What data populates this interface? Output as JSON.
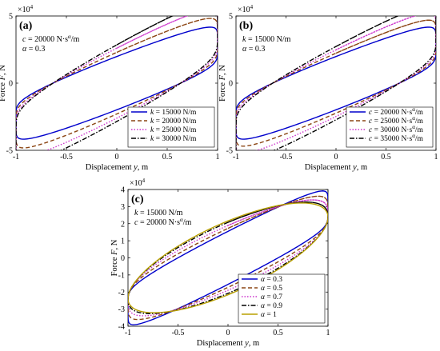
{
  "figure": {
    "x_unit_label_prefix": "Displacement ",
    "x_unit_label_var": "y",
    "x_unit_label_suffix": ", m",
    "y_unit_label_prefix": "Force ",
    "y_unit_label_var": "F",
    "y_unit_label_suffix": ", N",
    "exponent_label": "×10",
    "exponent_power": "4"
  },
  "chart_data": [
    {
      "type": "line",
      "panel_label": "(a)",
      "title": "",
      "xlabel": "Displacement y, m",
      "ylabel": "Force F, N",
      "xlim": [
        -1,
        1
      ],
      "ylim": [
        -5,
        5
      ],
      "y_scale_note": "×10^4",
      "xticks": [
        -1,
        -0.5,
        0,
        0.5,
        1
      ],
      "xtick_labels": [
        "-1",
        "-0.5",
        "0",
        "0.5",
        "1"
      ],
      "yticks": [
        -5,
        0,
        5
      ],
      "ytick_labels": [
        "-5",
        "0",
        "5"
      ],
      "annotation": [
        "c = 20000 N·s^α/m",
        "α = 0.3"
      ],
      "legend_position": "lower-right",
      "model": {
        "c": 20000,
        "alpha": 0.3
      },
      "series": [
        {
          "name": "k = 15000 N/m",
          "k": 15000,
          "color": "#0000cc",
          "dash": "solid",
          "peak": 3.2
        },
        {
          "name": "k = 20000 N/m",
          "k": 20000,
          "color": "#8b4513",
          "dash": "dashed",
          "peak": 3.7
        },
        {
          "name": "k = 25000 N/m",
          "k": 25000,
          "color": "#cc33cc",
          "dash": "dotted",
          "peak": 4.2
        },
        {
          "name": "k = 30000 N/m",
          "k": 30000,
          "color": "#000000",
          "dash": "dashdot",
          "peak": 4.6
        }
      ]
    },
    {
      "type": "line",
      "panel_label": "(b)",
      "title": "",
      "xlabel": "Displacement y, m",
      "ylabel": "Force F, N",
      "xlim": [
        -1,
        1
      ],
      "ylim": [
        -5,
        5
      ],
      "y_scale_note": "×10^4",
      "xticks": [
        -1,
        -0.5,
        0,
        0.5,
        1
      ],
      "xtick_labels": [
        "-1",
        "-0.5",
        "0",
        "0.5",
        "1"
      ],
      "yticks": [
        -5,
        0,
        5
      ],
      "ytick_labels": [
        "-5",
        "0",
        "5"
      ],
      "annotation": [
        "k = 15000 N/m",
        "α = 0.3"
      ],
      "legend_position": "lower-right",
      "model": {
        "k": 15000,
        "alpha": 0.3
      },
      "series": [
        {
          "name": "c = 20000 N·s^α/m",
          "c": 20000,
          "color": "#0000cc",
          "dash": "solid",
          "peak": 3.2
        },
        {
          "name": "c = 25000 N·s^α/m",
          "c": 25000,
          "color": "#8b4513",
          "dash": "dashed",
          "peak": 3.6
        },
        {
          "name": "c = 30000 N·s^α/m",
          "c": 30000,
          "color": "#cc33cc",
          "dash": "dotted",
          "peak": 4.0
        },
        {
          "name": "c = 35000 N·s^α/m",
          "c": 35000,
          "color": "#000000",
          "dash": "dashdot",
          "peak": 4.4
        }
      ]
    },
    {
      "type": "line",
      "panel_label": "(c)",
      "title": "",
      "xlabel": "Displacement y, m",
      "ylabel": "Force F, N",
      "xlim": [
        -1,
        1
      ],
      "ylim": [
        -4,
        4
      ],
      "y_scale_note": "×10^4",
      "xticks": [
        -1,
        -0.5,
        0,
        0.5,
        1
      ],
      "xtick_labels": [
        "-1",
        "-0.5",
        "0",
        "0.5",
        "1"
      ],
      "yticks": [
        -4,
        -3,
        -2,
        -1,
        0,
        1,
        2,
        3,
        4
      ],
      "ytick_labels": [
        "-4",
        "-3",
        "-2",
        "-1",
        "0",
        "1",
        "2",
        "3",
        "4"
      ],
      "annotation": [
        "k = 15000 N/m",
        "c = 20000 N·s^α/m"
      ],
      "legend_position": "lower-right",
      "model": {
        "k": 15000,
        "c": 20000
      },
      "series": [
        {
          "name": "α = 0.3",
          "alpha": 0.3,
          "color": "#0000cc",
          "dash": "solid",
          "peak": 3.2
        },
        {
          "name": "α = 0.5",
          "alpha": 0.5,
          "color": "#8b4513",
          "dash": "dashed",
          "peak": 3.0
        },
        {
          "name": "α = 0.7",
          "alpha": 0.7,
          "color": "#cc33cc",
          "dash": "dotted",
          "peak": 2.85
        },
        {
          "name": "α = 0.9",
          "alpha": 0.9,
          "color": "#000000",
          "dash": "dashdot",
          "peak": 2.75
        },
        {
          "name": "α = 1",
          "alpha": 1.0,
          "color": "#b8a000",
          "dash": "solid",
          "peak": 2.7
        }
      ]
    }
  ]
}
